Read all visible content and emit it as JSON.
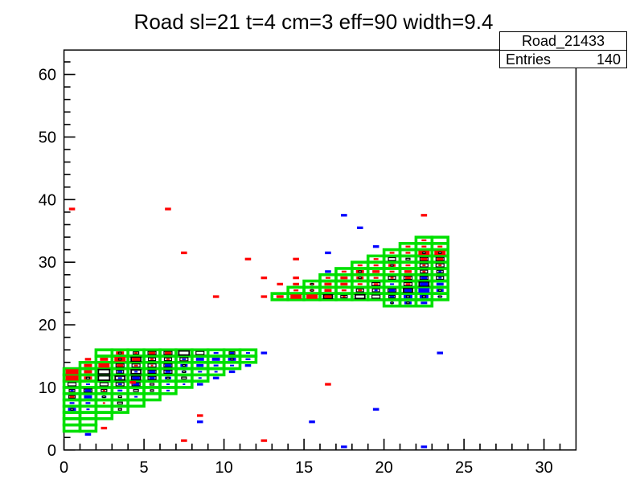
{
  "title": "Road sl=21 t=4 cm=3 eff=90 width=9.4",
  "stats": {
    "name": "Road_21433",
    "entries_label": "Entries",
    "entries_value": "140"
  },
  "colors": {
    "road": "#00e000",
    "red_series": "#ff0000",
    "blue_series": "#0000ff",
    "frame": "#000000",
    "background": "#ffffff"
  },
  "chart_data": {
    "type": "2d-box-histogram",
    "title": "Road sl=21 t=4 cm=3 eff=90 width=9.4",
    "histogram_name": "Road_21433",
    "entries": 140,
    "x_axis": {
      "min": 0,
      "max": 32,
      "major_ticks": [
        0,
        5,
        10,
        15,
        20,
        25,
        30
      ],
      "minor_step": 1
    },
    "y_axis": {
      "min": 0,
      "max": 63.9,
      "major_ticks": [
        0,
        10,
        20,
        30,
        40,
        50,
        60
      ],
      "minor_step": 2
    },
    "grid": false,
    "legend": false,
    "road_rows": [
      [
        3,
        0,
        1
      ],
      [
        4,
        0,
        1
      ],
      [
        5,
        0,
        2
      ],
      [
        6,
        0,
        3
      ],
      [
        7,
        0,
        4
      ],
      [
        8,
        0,
        5
      ],
      [
        9,
        0,
        6
      ],
      [
        10,
        0,
        7
      ],
      [
        11,
        0,
        8
      ],
      [
        12,
        0,
        9
      ],
      [
        13,
        1,
        10
      ],
      [
        14,
        2,
        11
      ],
      [
        15,
        2,
        11
      ],
      [
        23,
        20,
        22
      ],
      [
        24,
        13,
        23
      ],
      [
        25,
        14,
        23
      ],
      [
        26,
        15,
        23
      ],
      [
        27,
        16,
        23
      ],
      [
        28,
        17,
        23
      ],
      [
        29,
        18,
        23
      ],
      [
        30,
        19,
        23
      ],
      [
        31,
        20,
        23
      ],
      [
        32,
        21,
        23
      ],
      [
        33,
        22,
        23
      ]
    ],
    "boxes": [
      [
        3,
        15,
        "r",
        0.5,
        0.15
      ],
      [
        4,
        15,
        "r",
        0.2,
        0.35
      ],
      [
        5,
        15,
        "r",
        0.4,
        0.5
      ],
      [
        6,
        15,
        "r",
        0.4,
        0.5
      ],
      [
        7,
        15,
        "",
        0,
        0.65
      ],
      [
        8,
        15,
        "",
        0,
        0.5
      ],
      [
        9,
        15,
        "b",
        0.3,
        0
      ],
      [
        10,
        15,
        "b",
        0.25,
        0.35
      ],
      [
        11,
        15,
        "b",
        0.25,
        0
      ],
      [
        2,
        14,
        "r",
        0.5,
        0
      ],
      [
        3,
        14,
        "r",
        0.7,
        0.15
      ],
      [
        4,
        14,
        "r",
        0.5,
        0.6
      ],
      [
        5,
        14,
        "r",
        0.2,
        0.45
      ],
      [
        6,
        14,
        "r",
        0.2,
        0.45
      ],
      [
        7,
        14,
        "b",
        0.25,
        0.5
      ],
      [
        8,
        14,
        "b",
        0.5,
        0
      ],
      [
        9,
        14,
        "b",
        0.5,
        0
      ],
      [
        10,
        14,
        "b",
        0.5,
        0.15
      ],
      [
        11,
        14,
        "b",
        0.3,
        0
      ],
      [
        1,
        13,
        "r",
        0.5,
        0
      ],
      [
        2,
        13,
        "r",
        0.7,
        0
      ],
      [
        3,
        13,
        "r",
        0.4,
        0.5
      ],
      [
        4,
        13,
        "r",
        0.25,
        0.5
      ],
      [
        5,
        13,
        "r",
        0.15,
        0.5
      ],
      [
        6,
        13,
        "b",
        0.4,
        0.5
      ],
      [
        7,
        13,
        "b",
        0.45,
        0.15
      ],
      [
        8,
        13,
        "b",
        0.45,
        0
      ],
      [
        9,
        13,
        "b",
        0.3,
        0
      ],
      [
        10,
        13,
        "b",
        0.25,
        0
      ],
      [
        0,
        12,
        "r",
        0.8,
        0
      ],
      [
        1,
        12,
        "r",
        0.5,
        0
      ],
      [
        2,
        12,
        "",
        0,
        0.7
      ],
      [
        3,
        12,
        "b",
        0.3,
        0.45
      ],
      [
        4,
        12,
        "b",
        0.2,
        0.6
      ],
      [
        5,
        12,
        "b",
        0.4,
        0.5
      ],
      [
        6,
        12,
        "b",
        0.35,
        0.5
      ],
      [
        7,
        12,
        "b",
        0.3,
        0.15
      ],
      [
        8,
        12,
        "b",
        0.25,
        0
      ],
      [
        9,
        12,
        "b",
        0.2,
        0
      ],
      [
        0,
        11,
        "r",
        0.8,
        0
      ],
      [
        1,
        11,
        "r",
        0.5,
        0.2
      ],
      [
        2,
        11,
        "",
        0,
        0.7
      ],
      [
        3,
        11,
        "b",
        0.25,
        0.6
      ],
      [
        4,
        11,
        "b",
        0.45,
        0.55
      ],
      [
        5,
        11,
        "b",
        0.35,
        0.5
      ],
      [
        6,
        11,
        "b",
        0.4,
        0.15
      ],
      [
        7,
        11,
        "",
        0,
        0.3
      ],
      [
        8,
        11,
        "b",
        0.2,
        0
      ],
      [
        0,
        10,
        "",
        0,
        0.5
      ],
      [
        1,
        10,
        "b",
        0.25,
        0
      ],
      [
        2,
        10,
        "",
        0,
        0.5
      ],
      [
        3,
        10,
        "b",
        0.25,
        0.5
      ],
      [
        4,
        10,
        "b",
        0.4,
        0.5
      ],
      [
        5,
        10,
        "",
        0,
        0.25
      ],
      [
        6,
        10,
        "b",
        0.2,
        0
      ],
      [
        7,
        10,
        "b",
        0.15,
        0
      ],
      [
        0,
        9,
        "b",
        0.2,
        0.35
      ],
      [
        1,
        9,
        "b",
        0.4,
        0.5
      ],
      [
        2,
        9,
        "r",
        0.15,
        0.35
      ],
      [
        3,
        9,
        "b",
        0.3,
        0
      ],
      [
        4,
        9,
        "",
        0,
        0.3
      ],
      [
        5,
        9,
        "",
        0,
        0.2
      ],
      [
        6,
        9,
        "b",
        0.2,
        0
      ],
      [
        0,
        8,
        "r",
        0.3,
        0.4
      ],
      [
        1,
        8,
        "b",
        0.5,
        0
      ],
      [
        2,
        8,
        "b",
        0.3,
        0.15
      ],
      [
        3,
        8,
        "",
        0,
        0.2
      ],
      [
        4,
        8,
        "b",
        0.2,
        0
      ],
      [
        0,
        7,
        "b",
        0.3,
        0
      ],
      [
        1,
        7,
        "b",
        0.3,
        0
      ],
      [
        2,
        7,
        "r",
        0.15,
        0
      ],
      [
        3,
        7,
        "",
        0,
        0.3
      ],
      [
        0,
        6,
        "b",
        0.5,
        0.15
      ],
      [
        1,
        6,
        "b",
        0.2,
        0
      ],
      [
        3,
        6,
        "",
        0,
        0.2
      ],
      [
        13,
        24,
        "r",
        0.45,
        0
      ],
      [
        14,
        24,
        "r",
        0.7,
        0
      ],
      [
        15,
        24,
        "r",
        0.7,
        0
      ],
      [
        16,
        24,
        "r",
        0.45,
        0.55
      ],
      [
        17,
        24,
        "r",
        0.2,
        0.4
      ],
      [
        18,
        24,
        "",
        0,
        0.6
      ],
      [
        19,
        24,
        "",
        0,
        0.5
      ],
      [
        20,
        24,
        "b",
        0.3,
        0.4
      ],
      [
        21,
        24,
        "b",
        0.55,
        0.2
      ],
      [
        22,
        24,
        "b",
        0.55,
        0.2
      ],
      [
        23,
        24,
        "b",
        0.3,
        0.15
      ],
      [
        14,
        25,
        "r",
        0.3,
        0
      ],
      [
        15,
        25,
        "r",
        0.3,
        0.12
      ],
      [
        16,
        25,
        "r",
        0.45,
        0
      ],
      [
        17,
        25,
        "r",
        0.3,
        0
      ],
      [
        18,
        25,
        "r",
        0.25,
        0.45
      ],
      [
        19,
        25,
        "b",
        0.2,
        0.45
      ],
      [
        20,
        25,
        "b",
        0.4,
        0.5
      ],
      [
        21,
        25,
        "b",
        0.45,
        0.55
      ],
      [
        22,
        25,
        "b",
        0.7,
        0
      ],
      [
        23,
        25,
        "b",
        0.45,
        0.15
      ],
      [
        15,
        26,
        "r",
        0.3,
        0.12
      ],
      [
        16,
        26,
        "r",
        0.45,
        0
      ],
      [
        17,
        26,
        "r",
        0.45,
        0
      ],
      [
        18,
        26,
        "r",
        0.3,
        0
      ],
      [
        19,
        26,
        "r",
        0.3,
        0.5
      ],
      [
        20,
        26,
        "b",
        0.25,
        0
      ],
      [
        21,
        26,
        "r",
        0.3,
        0.5
      ],
      [
        22,
        26,
        "b",
        0.5,
        0.6
      ],
      [
        23,
        26,
        "b",
        0.45,
        0
      ],
      [
        16,
        27,
        "r",
        0.3,
        0
      ],
      [
        17,
        27,
        "r",
        0.45,
        0
      ],
      [
        18,
        27,
        "r",
        0.45,
        0.15
      ],
      [
        19,
        27,
        "r",
        0.3,
        0
      ],
      [
        20,
        27,
        "r",
        0.2,
        0.45
      ],
      [
        21,
        27,
        "r",
        0.35,
        0.5
      ],
      [
        22,
        27,
        "b",
        0.4,
        0.5
      ],
      [
        23,
        27,
        "b",
        0.2,
        0.45
      ],
      [
        17,
        28,
        "r",
        0.3,
        0
      ],
      [
        18,
        28,
        "r",
        0.5,
        0.15
      ],
      [
        19,
        28,
        "r",
        0.45,
        0
      ],
      [
        20,
        28,
        "r",
        0.3,
        0
      ],
      [
        21,
        28,
        "r",
        0.45,
        0
      ],
      [
        22,
        28,
        "r",
        0.2,
        0.45
      ],
      [
        23,
        28,
        "b",
        0.2,
        0.4
      ],
      [
        18,
        29,
        "r",
        0.3,
        0
      ],
      [
        19,
        29,
        "r",
        0.3,
        0
      ],
      [
        20,
        29,
        "r",
        0.45,
        0.15
      ],
      [
        21,
        29,
        "r",
        0.3,
        0
      ],
      [
        22,
        29,
        "r",
        0.2,
        0.5
      ],
      [
        23,
        29,
        "r",
        0.2,
        0.5
      ],
      [
        19,
        30,
        "r",
        0.3,
        0
      ],
      [
        20,
        30,
        "",
        0,
        0.45
      ],
      [
        21,
        30,
        "",
        0,
        0.25
      ],
      [
        22,
        30,
        "r",
        0.4,
        0.5
      ],
      [
        23,
        30,
        "r",
        0.4,
        0.5
      ],
      [
        20,
        31,
        "r",
        0.3,
        0
      ],
      [
        21,
        31,
        "r",
        0.3,
        0
      ],
      [
        22,
        31,
        "r",
        0.7,
        0.15
      ],
      [
        23,
        31,
        "r",
        0.7,
        0.15
      ],
      [
        21,
        32,
        "r",
        0.3,
        0
      ],
      [
        22,
        32,
        "r",
        0.3,
        0
      ],
      [
        23,
        32,
        "r",
        0.3,
        0
      ],
      [
        22,
        33,
        "r",
        0.3,
        0
      ],
      [
        20,
        23,
        "b",
        0.25,
        0.12
      ],
      [
        21,
        23,
        "b",
        0.45,
        0.15
      ],
      [
        22,
        23,
        "b",
        0.4,
        0
      ]
    ],
    "marks": [
      [
        0.5,
        38.5,
        "r"
      ],
      [
        6.5,
        38.5,
        "r"
      ],
      [
        22.5,
        37.5,
        "r"
      ],
      [
        7.5,
        31.5,
        "r"
      ],
      [
        11.5,
        30.5,
        "r"
      ],
      [
        14.5,
        30.5,
        "r"
      ],
      [
        12.5,
        27.5,
        "r"
      ],
      [
        14.5,
        27.5,
        "r"
      ],
      [
        13.5,
        26.5,
        "r"
      ],
      [
        14.5,
        26.5,
        "r"
      ],
      [
        12.5,
        24.5,
        "r"
      ],
      [
        9.5,
        24.5,
        "r"
      ],
      [
        1.5,
        14.5,
        "r"
      ],
      [
        16.5,
        10.5,
        "r"
      ],
      [
        4.3,
        10.8,
        "r"
      ],
      [
        8.5,
        5.5,
        "r"
      ],
      [
        2.5,
        3.5,
        "r"
      ],
      [
        7.5,
        1.5,
        "r"
      ],
      [
        12.5,
        1.5,
        "r"
      ],
      [
        17.5,
        37.5,
        "b"
      ],
      [
        18.5,
        35.5,
        "b"
      ],
      [
        19.5,
        32.5,
        "b"
      ],
      [
        16.5,
        31.5,
        "b"
      ],
      [
        16.5,
        28.5,
        "b"
      ],
      [
        23.5,
        15.5,
        "b"
      ],
      [
        12.5,
        15.5,
        "b"
      ],
      [
        11.5,
        13.5,
        "b"
      ],
      [
        10.5,
        12.5,
        "b"
      ],
      [
        9.5,
        11.5,
        "b"
      ],
      [
        8.5,
        10.5,
        "b"
      ],
      [
        19.5,
        6.5,
        "b"
      ],
      [
        15.5,
        4.5,
        "b"
      ],
      [
        8.5,
        4.5,
        "b"
      ],
      [
        1.5,
        2.5,
        "b"
      ],
      [
        17.5,
        0.5,
        "b"
      ],
      [
        22.5,
        0.5,
        "b"
      ]
    ]
  }
}
